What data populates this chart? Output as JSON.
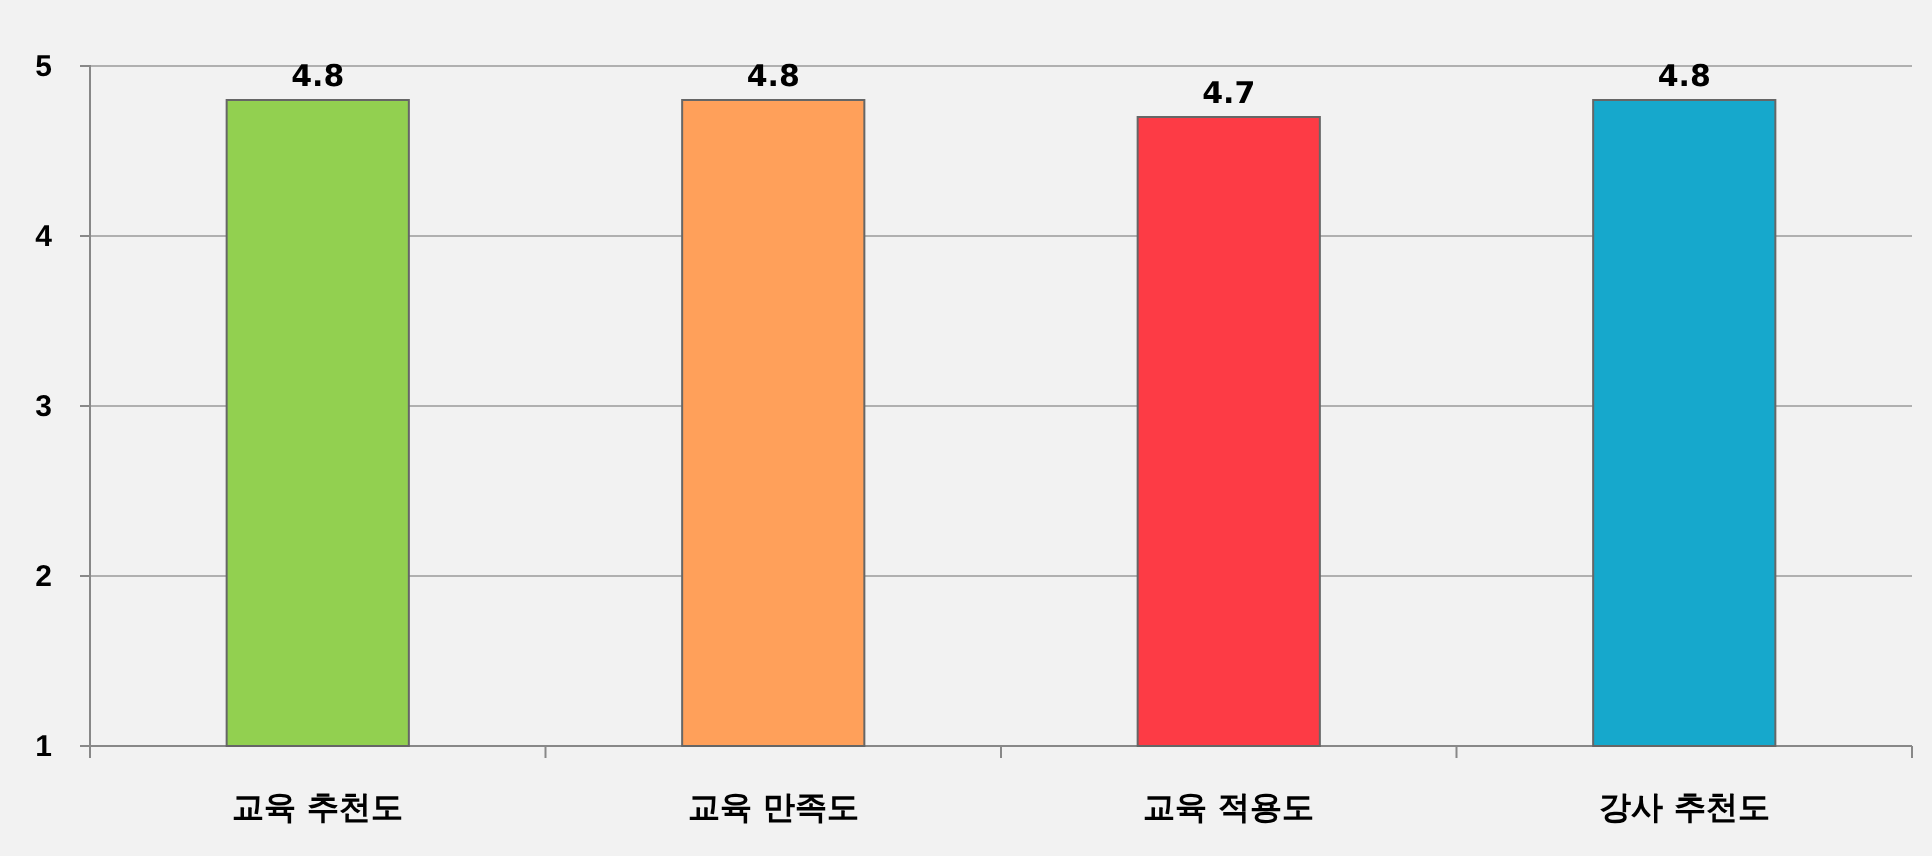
{
  "chart_data": {
    "type": "bar",
    "categories": [
      "교육 추천도",
      "교육 만족도",
      "교육 적용도",
      "강사 추천도"
    ],
    "values": [
      4.8,
      4.8,
      4.7,
      4.8
    ],
    "colors": [
      "#92d050",
      "#ffa05a",
      "#fd3b45",
      "#16a8cc"
    ],
    "ylim": [
      1,
      5
    ],
    "yticks": [
      1,
      2,
      3,
      4,
      5
    ],
    "grid": "y",
    "data_labels": true
  }
}
